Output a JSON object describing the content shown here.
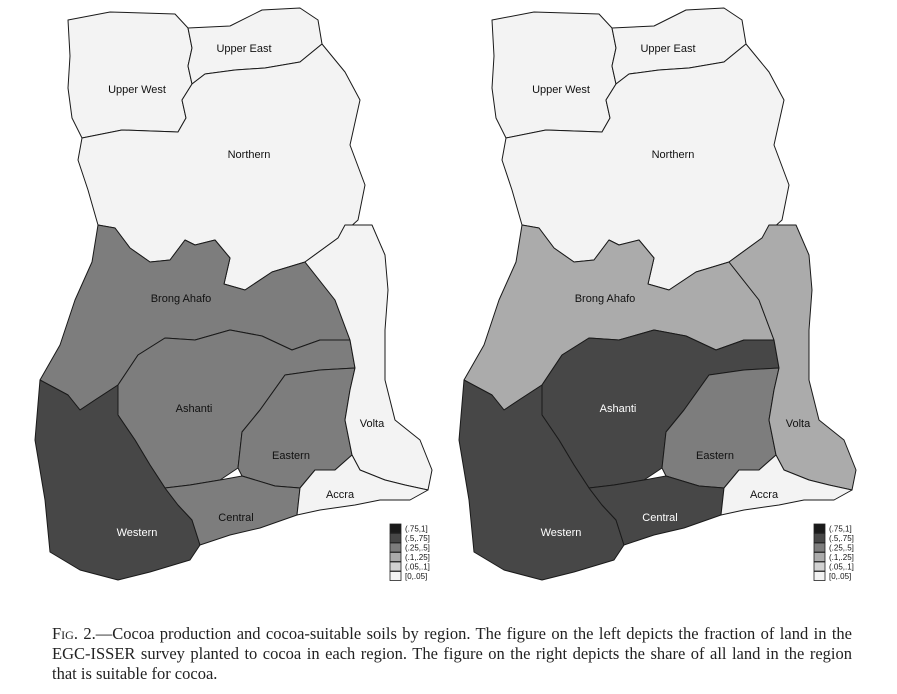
{
  "maps": [
    {
      "id": "left",
      "regions": {
        "upper_west": {
          "label": "Upper West",
          "class": "[0,.05]"
        },
        "upper_east": {
          "label": "Upper East",
          "class": "[0,.05]"
        },
        "northern": {
          "label": "Northern",
          "class": "[0,.05]"
        },
        "brong_ahafo": {
          "label": "Brong Ahafo",
          "class": "(.25,.5]"
        },
        "ashanti": {
          "label": "Ashanti",
          "class": "(.25,.5]"
        },
        "eastern": {
          "label": "Eastern",
          "class": "(.25,.5]"
        },
        "volta": {
          "label": "Volta",
          "class": "[0,.05]"
        },
        "western": {
          "label": "Western",
          "class": "(.5,.75]"
        },
        "central": {
          "label": "Central",
          "class": "(.25,.5]"
        },
        "accra": {
          "label": "Accra",
          "class": "[0,.05]"
        }
      }
    },
    {
      "id": "right",
      "regions": {
        "upper_west": {
          "label": "Upper West",
          "class": "[0,.05]"
        },
        "upper_east": {
          "label": "Upper East",
          "class": "[0,.05]"
        },
        "northern": {
          "label": "Northern",
          "class": "[0,.05]"
        },
        "brong_ahafo": {
          "label": "Brong Ahafo",
          "class": "(.1,.25]"
        },
        "ashanti": {
          "label": "Ashanti",
          "class": "(.5,.75]"
        },
        "eastern": {
          "label": "Eastern",
          "class": "(.25,.5]"
        },
        "volta": {
          "label": "Volta",
          "class": "(.1,.25]"
        },
        "western": {
          "label": "Western",
          "class": "(.5,.75]"
        },
        "central": {
          "label": "Central",
          "class": "(.5,.75]"
        },
        "accra": {
          "label": "Accra",
          "class": "[0,.05]"
        }
      }
    }
  ],
  "legend": [
    {
      "label": "(.75,1]",
      "color": "#1a1a1a"
    },
    {
      "label": "(.5,.75]",
      "color": "#474747"
    },
    {
      "label": "(.25,.5]",
      "color": "#7d7d7d"
    },
    {
      "label": "(.1,.25]",
      "color": "#ababab"
    },
    {
      "label": "(.05,.1]",
      "color": "#d2d2d2"
    },
    {
      "label": "[0,.05]",
      "color": "#f3f3f3"
    }
  ],
  "caption": {
    "fig_label": "Fig. 2.",
    "text": "—Cocoa production and cocoa-suitable soils by region. The figure on the left depicts the fraction of land in the EGC-ISSER survey planted to cocoa in each region. The figure on the right depicts the share of all land in the region that is suitable for cocoa."
  }
}
